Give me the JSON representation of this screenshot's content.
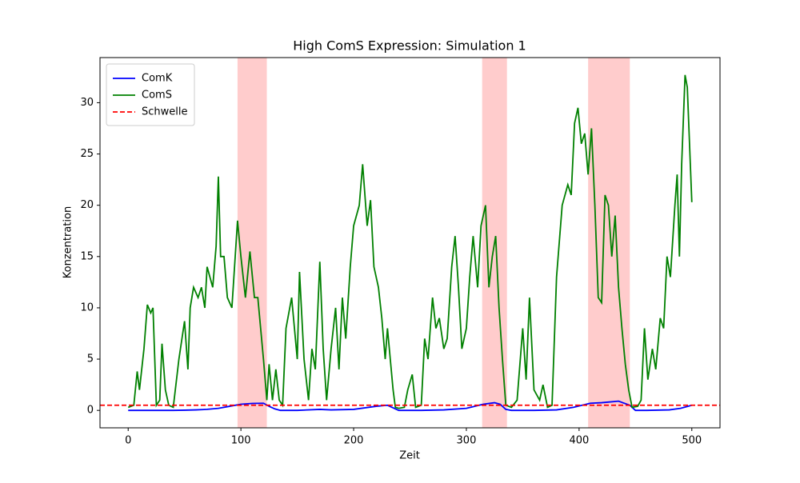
{
  "chart_data": {
    "type": "line",
    "title": "High ComS Expression: Simulation 1",
    "xlabel": "Zeit",
    "ylabel": "Konzentration",
    "xlim": [
      -25,
      525
    ],
    "ylim": [
      -1.7,
      34.4
    ],
    "xticks": [
      0,
      100,
      200,
      300,
      400,
      500
    ],
    "yticks": [
      0,
      5,
      10,
      15,
      20,
      25,
      30
    ],
    "legend": "upper left",
    "spans": [
      [
        97,
        123
      ],
      [
        314,
        336
      ],
      [
        408,
        445
      ]
    ],
    "span_color": "#ff0000",
    "threshold": {
      "name": "Schwelle",
      "value": 0.5,
      "color": "#ff0000"
    },
    "series": [
      {
        "name": "ComK",
        "color": "#0000ff",
        "x": [
          0,
          10,
          20,
          30,
          40,
          50,
          60,
          70,
          80,
          90,
          100,
          110,
          120,
          125,
          130,
          135,
          150,
          170,
          180,
          200,
          220,
          230,
          240,
          260,
          280,
          300,
          315,
          325,
          330,
          335,
          340,
          360,
          380,
          395,
          410,
          420,
          435,
          445,
          450,
          460,
          480,
          490,
          500
        ],
        "values": [
          0,
          0,
          0,
          0,
          0,
          0.02,
          0.05,
          0.1,
          0.2,
          0.4,
          0.6,
          0.68,
          0.7,
          0.4,
          0.15,
          0,
          0,
          0.1,
          0.05,
          0.1,
          0.4,
          0.5,
          0,
          0,
          0.05,
          0.2,
          0.6,
          0.75,
          0.6,
          0.1,
          0,
          0,
          0.05,
          0.3,
          0.7,
          0.75,
          0.9,
          0.5,
          0,
          0,
          0.05,
          0.2,
          0.5
        ]
      },
      {
        "name": "ComS",
        "color": "#008000",
        "x": [
          0,
          5,
          8,
          10,
          14,
          17,
          20,
          22,
          25,
          28,
          30,
          33,
          36,
          40,
          45,
          50,
          53,
          55,
          58,
          62,
          65,
          68,
          70,
          75,
          78,
          80,
          82,
          85,
          88,
          92,
          97,
          100,
          104,
          108,
          112,
          115,
          120,
          123,
          125,
          128,
          131,
          134,
          137,
          140,
          145,
          150,
          152,
          156,
          160,
          163,
          166,
          170,
          173,
          176,
          180,
          184,
          187,
          190,
          193,
          197,
          200,
          205,
          208,
          212,
          215,
          218,
          222,
          225,
          228,
          230,
          235,
          237,
          240,
          245,
          248,
          252,
          255,
          260,
          263,
          266,
          270,
          273,
          276,
          280,
          283,
          287,
          290,
          293,
          296,
          300,
          303,
          306,
          310,
          313,
          317,
          320,
          323,
          326,
          329,
          332,
          335,
          340,
          345,
          350,
          353,
          356,
          360,
          365,
          368,
          372,
          376,
          380,
          385,
          390,
          393,
          396,
          399,
          402,
          405,
          408,
          411,
          414,
          417,
          420,
          423,
          426,
          429,
          432,
          435,
          438,
          441,
          444,
          447,
          452,
          455,
          458,
          461,
          465,
          468,
          472,
          475,
          478,
          481,
          485,
          487,
          489,
          491,
          494,
          496,
          500
        ],
        "values": [
          0.3,
          0.5,
          3.8,
          2,
          6,
          10.3,
          9.5,
          10,
          0.5,
          1,
          6.5,
          2,
          0.5,
          0.3,
          5,
          8.7,
          4,
          10,
          12,
          11,
          12,
          10,
          14,
          12,
          16,
          22.8,
          15,
          15,
          11,
          10,
          18.5,
          15,
          11,
          15.5,
          11,
          11,
          5,
          1,
          4.5,
          1,
          4,
          1,
          0.5,
          8,
          11,
          5,
          13.5,
          5,
          1,
          6,
          4,
          14.5,
          6,
          1,
          6,
          10,
          4,
          11,
          7,
          14,
          18,
          20,
          24,
          18,
          20.5,
          14,
          12,
          9,
          5,
          8,
          2,
          0.3,
          0.2,
          0.3,
          2,
          3.5,
          0.3,
          0.5,
          7,
          5,
          11,
          8,
          9,
          6,
          7,
          14,
          17,
          12,
          6,
          8,
          13,
          17,
          12,
          18,
          20,
          12,
          15,
          17,
          10,
          5,
          0.5,
          0.3,
          1,
          8,
          3,
          11,
          2,
          1,
          2.5,
          0.3,
          0.5,
          13,
          20,
          22,
          21,
          28,
          29.5,
          26,
          27,
          23,
          27.5,
          20,
          11,
          10.5,
          21,
          20,
          15,
          19,
          12,
          8,
          4.5,
          2,
          0.3,
          0.4,
          1,
          8,
          3,
          6,
          4,
          9,
          8,
          15,
          13,
          20,
          23,
          15,
          24,
          32.7,
          31.5,
          20.3
        ]
      }
    ]
  }
}
